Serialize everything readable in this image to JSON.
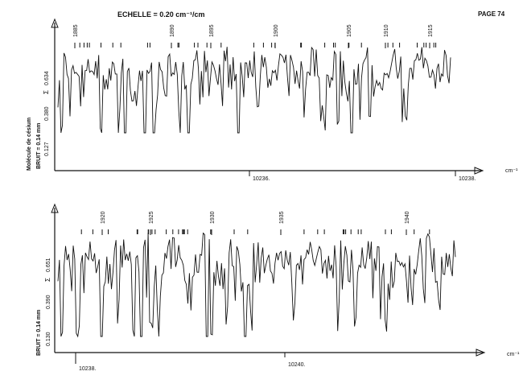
{
  "page": {
    "number": "PAGE 74",
    "scale_label": "ECHELLE = 0.20 cm⁻¹/cm"
  },
  "chart_data": [
    {
      "type": "line",
      "panel": "top",
      "molecule_label": "Molécule de césium",
      "noise_label": "BRUIT = 0.14 mm",
      "ylabel_symbol": "Σ",
      "yticks": [
        "0.127",
        "0.380",
        "0.634"
      ],
      "x_unit": "cm⁻¹",
      "xticks": [
        "10236.",
        "10238."
      ],
      "assignments": [
        "1885",
        "1890",
        "1895",
        "1900",
        "1905",
        "1910",
        "1915"
      ],
      "ylim": [
        0,
        1
      ],
      "seed": 17,
      "dip_count": 22
    },
    {
      "type": "line",
      "panel": "bottom",
      "noise_label": "BRUIT = 0.14 mm",
      "ylabel_symbol": "Σ",
      "yticks": [
        "0.130",
        "0.390",
        "0.651"
      ],
      "x_unit": "cm⁻¹",
      "xticks": [
        "10238.",
        "10240."
      ],
      "assignments": [
        "1920",
        "1925",
        "1930",
        "1935",
        "1940"
      ],
      "ylim": [
        0,
        1
      ],
      "seed": 53,
      "dip_count": 22
    }
  ]
}
